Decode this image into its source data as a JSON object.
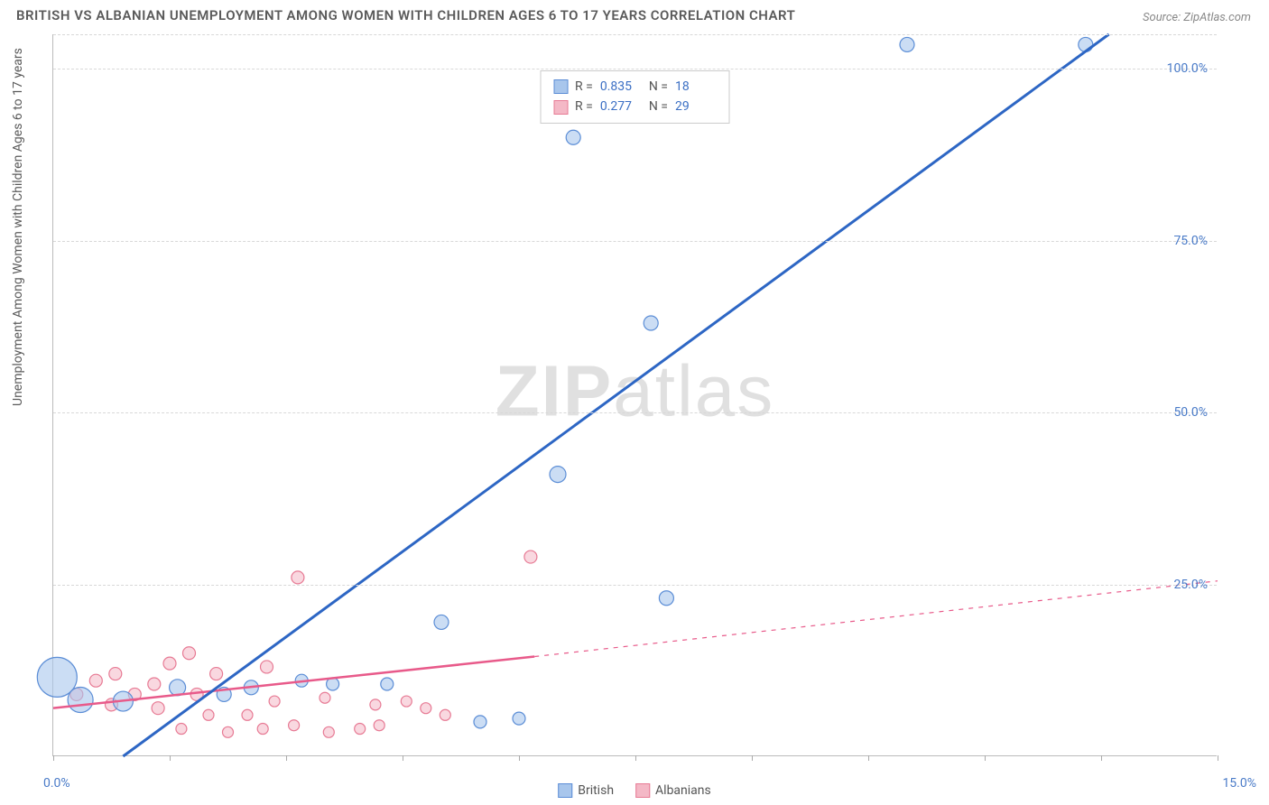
{
  "title": "BRITISH VS ALBANIAN UNEMPLOYMENT AMONG WOMEN WITH CHILDREN AGES 6 TO 17 YEARS CORRELATION CHART",
  "source": "Source: ZipAtlas.com",
  "y_axis_label": "Unemployment Among Women with Children Ages 6 to 17 years",
  "watermark_a": "ZIP",
  "watermark_b": "atlas",
  "chart": {
    "type": "scatter",
    "xlim": [
      0,
      15
    ],
    "ylim": [
      0,
      105
    ],
    "x_ticks": [
      0,
      1.5,
      3.0,
      4.5,
      6.0,
      7.5,
      9.0,
      10.5,
      12.0,
      13.5,
      15.0
    ],
    "x_tick_labels": {
      "0": "0.0%",
      "15": "15.0%"
    },
    "y_grid": [
      25,
      50,
      75,
      100,
      105
    ],
    "y_tick_labels": {
      "25": "25.0%",
      "50": "50.0%",
      "75": "75.0%",
      "100": "100.0%"
    },
    "background_color": "#ffffff",
    "grid_color": "#d8d8d8",
    "axis_color": "#bbbbbb",
    "tick_label_color": "#4a7bc8"
  },
  "series": {
    "british": {
      "label": "British",
      "R_label": "R =",
      "R": "0.835",
      "N_label": "N =",
      "N": "18",
      "fill": "#a8c6ec",
      "stroke": "#5b8dd6",
      "fill_opacity": 0.6,
      "line_color": "#2d66c4",
      "line_width": 3,
      "line": {
        "x1": 0.9,
        "y1": 0,
        "x2": 13.6,
        "y2": 105
      },
      "line_dash_extend": null,
      "points": [
        {
          "x": 0.05,
          "y": 11.5,
          "r": 22
        },
        {
          "x": 0.35,
          "y": 8.2,
          "r": 14
        },
        {
          "x": 0.9,
          "y": 8.0,
          "r": 11
        },
        {
          "x": 1.6,
          "y": 10.0,
          "r": 9
        },
        {
          "x": 2.2,
          "y": 9.0,
          "r": 8
        },
        {
          "x": 2.55,
          "y": 10.0,
          "r": 8
        },
        {
          "x": 3.2,
          "y": 11.0,
          "r": 7
        },
        {
          "x": 3.6,
          "y": 10.5,
          "r": 7
        },
        {
          "x": 4.3,
          "y": 10.5,
          "r": 7
        },
        {
          "x": 5.0,
          "y": 19.5,
          "r": 8
        },
        {
          "x": 5.5,
          "y": 5.0,
          "r": 7
        },
        {
          "x": 6.0,
          "y": 5.5,
          "r": 7
        },
        {
          "x": 6.5,
          "y": 41.0,
          "r": 9
        },
        {
          "x": 6.7,
          "y": 90.0,
          "r": 8
        },
        {
          "x": 7.7,
          "y": 63.0,
          "r": 8
        },
        {
          "x": 7.9,
          "y": 23.0,
          "r": 8
        },
        {
          "x": 11.0,
          "y": 103.5,
          "r": 8
        },
        {
          "x": 13.3,
          "y": 103.5,
          "r": 8
        }
      ]
    },
    "albanians": {
      "label": "Albanians",
      "R_label": "R =",
      "R": "0.277",
      "N_label": "N =",
      "N": "29",
      "fill": "#f4b8c6",
      "stroke": "#e77a94",
      "fill_opacity": 0.55,
      "line_color": "#e85a8a",
      "line_width": 2.5,
      "line": {
        "x1": 0,
        "y1": 7.0,
        "x2": 6.2,
        "y2": 14.5
      },
      "line_dash_extend": {
        "x1": 6.2,
        "y1": 14.5,
        "x2": 15.0,
        "y2": 25.5
      },
      "points": [
        {
          "x": 0.3,
          "y": 9.0,
          "r": 7
        },
        {
          "x": 0.55,
          "y": 11.0,
          "r": 7
        },
        {
          "x": 0.75,
          "y": 7.5,
          "r": 7
        },
        {
          "x": 0.8,
          "y": 12.0,
          "r": 7
        },
        {
          "x": 1.05,
          "y": 9.0,
          "r": 7
        },
        {
          "x": 1.3,
          "y": 10.5,
          "r": 7
        },
        {
          "x": 1.35,
          "y": 7.0,
          "r": 7
        },
        {
          "x": 1.5,
          "y": 13.5,
          "r": 7
        },
        {
          "x": 1.65,
          "y": 4.0,
          "r": 6
        },
        {
          "x": 1.75,
          "y": 15.0,
          "r": 7
        },
        {
          "x": 1.85,
          "y": 9.0,
          "r": 7
        },
        {
          "x": 2.0,
          "y": 6.0,
          "r": 6
        },
        {
          "x": 2.1,
          "y": 12.0,
          "r": 7
        },
        {
          "x": 2.25,
          "y": 3.5,
          "r": 6
        },
        {
          "x": 2.5,
          "y": 6.0,
          "r": 6
        },
        {
          "x": 2.7,
          "y": 4.0,
          "r": 6
        },
        {
          "x": 2.75,
          "y": 13.0,
          "r": 7
        },
        {
          "x": 2.85,
          "y": 8.0,
          "r": 6
        },
        {
          "x": 3.1,
          "y": 4.5,
          "r": 6
        },
        {
          "x": 3.15,
          "y": 26.0,
          "r": 7
        },
        {
          "x": 3.5,
          "y": 8.5,
          "r": 6
        },
        {
          "x": 3.55,
          "y": 3.5,
          "r": 6
        },
        {
          "x": 3.95,
          "y": 4.0,
          "r": 6
        },
        {
          "x": 4.15,
          "y": 7.5,
          "r": 6
        },
        {
          "x": 4.2,
          "y": 4.5,
          "r": 6
        },
        {
          "x": 4.55,
          "y": 8.0,
          "r": 6
        },
        {
          "x": 4.8,
          "y": 7.0,
          "r": 6
        },
        {
          "x": 5.05,
          "y": 6.0,
          "r": 6
        },
        {
          "x": 6.15,
          "y": 29.0,
          "r": 7
        }
      ]
    }
  }
}
